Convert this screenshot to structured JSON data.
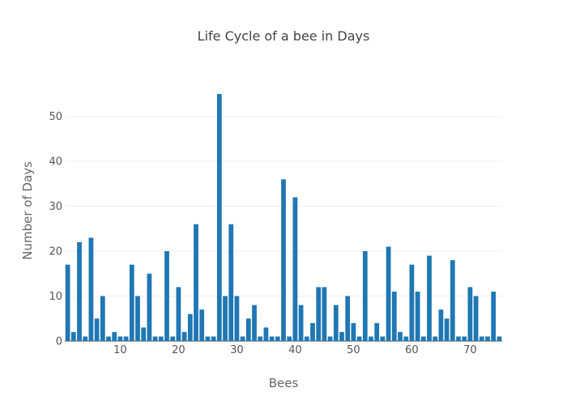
{
  "chart_data": {
    "type": "bar",
    "title": "Life Cycle of a bee in Days",
    "xlabel": "Bees",
    "ylabel": "Number of Days",
    "xlim": [
      0.5,
      75.5
    ],
    "ylim": [
      0,
      55
    ],
    "xticks": [
      10,
      20,
      30,
      40,
      50,
      60,
      70
    ],
    "yticks": [
      0,
      10,
      20,
      30,
      40,
      50
    ],
    "grid": true,
    "bar_color": "#1f77b4",
    "x": [
      1,
      2,
      3,
      4,
      5,
      6,
      7,
      8,
      9,
      10,
      11,
      12,
      13,
      14,
      15,
      16,
      17,
      18,
      19,
      20,
      21,
      22,
      23,
      24,
      25,
      26,
      27,
      28,
      29,
      30,
      31,
      32,
      33,
      34,
      35,
      36,
      37,
      38,
      39,
      40,
      41,
      42,
      43,
      44,
      45,
      46,
      47,
      48,
      49,
      50,
      51,
      52,
      53,
      54,
      55,
      56,
      57,
      58,
      59,
      60,
      61,
      62,
      63,
      64,
      65,
      66,
      67,
      68,
      69,
      70,
      71,
      72,
      73,
      74,
      75
    ],
    "values": [
      17,
      2,
      22,
      1,
      23,
      5,
      10,
      1,
      2,
      1,
      1,
      17,
      10,
      3,
      15,
      1,
      1,
      20,
      1,
      12,
      2,
      6,
      26,
      7,
      1,
      1,
      55,
      10,
      26,
      10,
      1,
      5,
      8,
      1,
      3,
      1,
      1,
      36,
      1,
      32,
      8,
      1,
      4,
      12,
      12,
      1,
      8,
      2,
      10,
      4,
      1,
      20,
      1,
      4,
      1,
      21,
      11,
      2,
      1,
      17,
      11,
      1,
      19,
      1,
      7,
      5,
      18,
      1,
      1,
      12,
      10,
      1,
      1,
      11,
      1
    ]
  }
}
